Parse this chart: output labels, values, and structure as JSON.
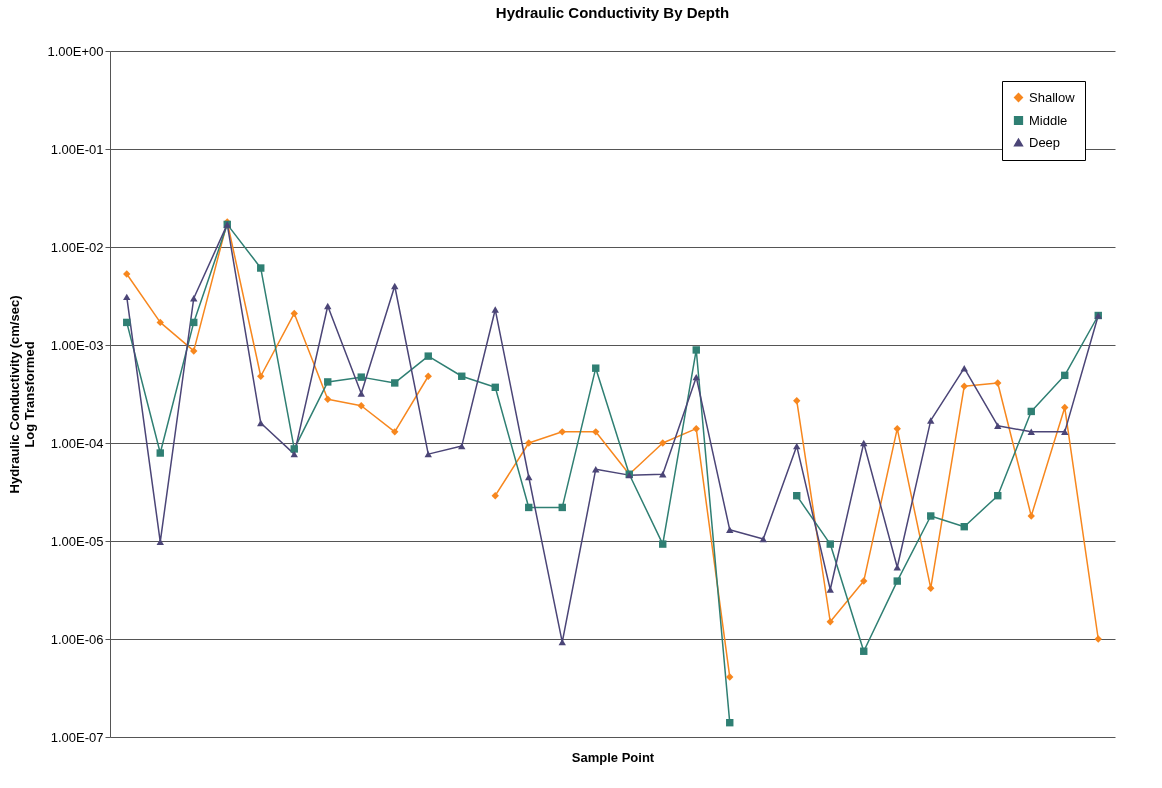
{
  "chart_data": {
    "type": "line",
    "title": "Hydraulic Conductivity By Depth",
    "xlabel": "Sample Point",
    "ylabel": "Hydraulic Conductivity (cm/sec)\nLog Transformed",
    "categories": [
      null,
      null,
      null,
      null,
      null,
      null,
      null,
      null,
      null,
      null,
      null,
      null,
      null,
      null,
      null,
      null,
      null,
      null,
      null,
      null,
      null,
      null,
      null,
      null,
      null,
      null,
      null,
      null,
      null,
      null
    ],
    "series": [
      {
        "name": "Shallow",
        "color": "#f7871e",
        "marker": "diamond",
        "values": [
          0.0053,
          0.0017,
          0.00087,
          0.018,
          0.00048,
          0.0021,
          0.00028,
          0.00024,
          0.00013,
          0.00048,
          null,
          2.9e-05,
          0.0001,
          0.00013,
          0.00013,
          4.8e-05,
          0.0001,
          0.00014,
          4.1e-07,
          null,
          0.00027,
          1.5e-06,
          3.9e-06,
          0.00014,
          3.3e-06,
          0.00038,
          0.00041,
          1.8e-05,
          0.00023,
          1e-06
        ]
      },
      {
        "name": "Middle",
        "color": "#2f7f73",
        "marker": "square",
        "values": [
          0.0017,
          7.9e-05,
          0.0017,
          0.017,
          0.0061,
          8.7e-05,
          0.00042,
          0.00047,
          0.00041,
          0.00077,
          0.00048,
          0.00037,
          2.2e-05,
          2.2e-05,
          0.00058,
          4.8e-05,
          9.3e-06,
          0.00089,
          1.4e-07,
          null,
          2.9e-05,
          9.3e-06,
          7.5e-07,
          3.9e-06,
          1.8e-05,
          1.4e-05,
          2.9e-05,
          0.00021,
          0.00049,
          0.002
        ]
      },
      {
        "name": "Deep",
        "color": "#4b4577",
        "marker": "triangle",
        "values": [
          0.0031,
          9.8e-06,
          0.003,
          0.017,
          0.00016,
          7.7e-05,
          0.0025,
          0.00032,
          0.004,
          7.7e-05,
          9.3e-05,
          0.0023,
          4.5e-05,
          9.3e-07,
          5.4e-05,
          4.7e-05,
          4.8e-05,
          0.00047,
          1.3e-05,
          1.05e-05,
          9.3e-05,
          3.2e-06,
          0.0001,
          5.4e-06,
          0.00017,
          0.00058,
          0.00015,
          0.00013,
          0.00013,
          0.002
        ]
      }
    ],
    "log": true,
    "ylim": [
      1e-07,
      1
    ],
    "yticks": [
      {
        "value": 1e-07,
        "label": "1.00E-07"
      },
      {
        "value": 1e-06,
        "label": "1.00E-06"
      },
      {
        "value": 1e-05,
        "label": "1.00E-05"
      },
      {
        "value": 0.0001,
        "label": "1.00E-04"
      },
      {
        "value": 0.001,
        "label": "1.00E-03"
      },
      {
        "value": 0.01,
        "label": "1.00E-02"
      },
      {
        "value": 0.1,
        "label": "1.00E-01"
      },
      {
        "value": 1,
        "label": "1.00E+00"
      }
    ],
    "grid": "y",
    "legend": "top right",
    "line_style": "solid"
  }
}
